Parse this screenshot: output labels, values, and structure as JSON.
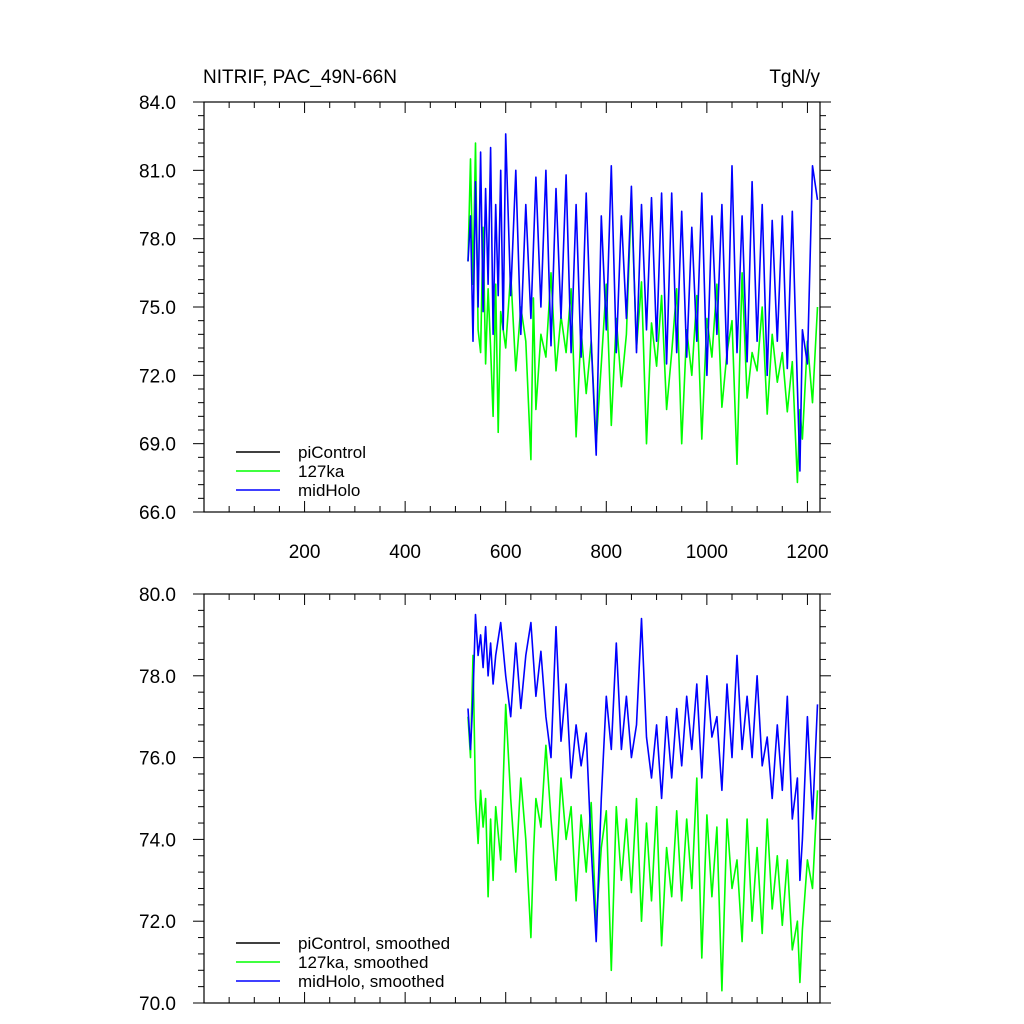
{
  "header": {
    "left_title": "NITRIF, PAC_49N-66N",
    "units": "TgN/y"
  },
  "colors": {
    "piControl": "#000000",
    "127ka": "#00ff00",
    "midHolo": "#0000ff"
  },
  "chart_data": [
    {
      "type": "line",
      "title": "",
      "xlabel": "",
      "ylabel": "",
      "xlim": [
        0,
        1225
      ],
      "ylim": [
        66,
        84
      ],
      "x_ticks": [
        200,
        400,
        600,
        800,
        1000,
        1200
      ],
      "x_tick_labels": [
        "200",
        "400",
        "600",
        "800",
        "1000",
        "1200"
      ],
      "y_ticks": [
        66,
        69,
        72,
        75,
        78,
        81,
        84
      ],
      "y_tick_labels": [
        "66.0",
        "69.0",
        "72.0",
        "75.0",
        "78.0",
        "81.0",
        "84.0"
      ],
      "legend": [
        "piControl",
        "127ka",
        "midHolo"
      ],
      "legend_position": "bottom-left",
      "series": [
        {
          "name": "piControl",
          "color": "#000000",
          "x": [],
          "y": []
        },
        {
          "name": "127ka",
          "color": "#00ff00",
          "x": [
            525,
            530,
            535,
            540,
            545,
            550,
            555,
            560,
            565,
            570,
            575,
            580,
            585,
            590,
            600,
            610,
            620,
            630,
            640,
            650,
            655,
            660,
            670,
            680,
            690,
            700,
            710,
            720,
            730,
            740,
            750,
            760,
            770,
            780,
            790,
            800,
            810,
            820,
            830,
            840,
            850,
            860,
            870,
            880,
            890,
            900,
            910,
            920,
            930,
            940,
            950,
            960,
            970,
            980,
            990,
            1000,
            1010,
            1020,
            1030,
            1040,
            1050,
            1060,
            1070,
            1080,
            1090,
            1100,
            1110,
            1120,
            1130,
            1140,
            1150,
            1160,
            1170,
            1180,
            1185,
            1190,
            1200,
            1210,
            1220
          ],
          "y": [
            77.0,
            81.5,
            76.0,
            82.2,
            74.0,
            73.0,
            78.5,
            72.5,
            75.8,
            73.2,
            70.2,
            76.0,
            69.5,
            74.8,
            73.2,
            76.5,
            72.2,
            75.0,
            73.5,
            68.3,
            75.4,
            70.5,
            73.8,
            72.8,
            76.5,
            72.2,
            74.6,
            73.0,
            75.8,
            69.3,
            74.0,
            71.2,
            73.5,
            69.0,
            72.5,
            76.0,
            69.8,
            74.5,
            71.5,
            73.8,
            79.8,
            73.2,
            76.1,
            69.0,
            74.3,
            72.4,
            75.5,
            70.5,
            73.0,
            75.8,
            69.0,
            74.0,
            72.0,
            75.5,
            69.2,
            74.5,
            72.8,
            76.0,
            70.6,
            73.0,
            74.4,
            68.1,
            76.5,
            71.0,
            73.0,
            72.2,
            75.0,
            70.3,
            73.8,
            71.7,
            73.0,
            70.4,
            72.6,
            67.3,
            70.5,
            69.2,
            73.5,
            70.8,
            75.0
          ]
        },
        {
          "name": "midHolo",
          "color": "#0000ff",
          "x": [
            525,
            530,
            535,
            540,
            545,
            550,
            555,
            560,
            565,
            570,
            575,
            580,
            585,
            590,
            595,
            600,
            610,
            620,
            630,
            640,
            650,
            660,
            670,
            680,
            690,
            700,
            710,
            720,
            730,
            740,
            750,
            760,
            770,
            780,
            790,
            800,
            810,
            820,
            830,
            840,
            850,
            860,
            870,
            880,
            890,
            900,
            910,
            920,
            930,
            940,
            950,
            960,
            970,
            980,
            990,
            1000,
            1010,
            1020,
            1030,
            1040,
            1050,
            1060,
            1070,
            1080,
            1090,
            1100,
            1110,
            1120,
            1130,
            1140,
            1150,
            1160,
            1170,
            1180,
            1185,
            1190,
            1200,
            1210,
            1220
          ],
          "y": [
            77.0,
            79.0,
            73.5,
            80.5,
            75.0,
            81.8,
            74.8,
            80.2,
            76.0,
            82.0,
            73.8,
            79.5,
            75.5,
            81.0,
            74.0,
            82.6,
            75.5,
            81.0,
            73.8,
            79.5,
            74.5,
            80.7,
            75.0,
            81.0,
            73.3,
            80.2,
            74.5,
            80.8,
            73.0,
            79.5,
            72.8,
            80.0,
            73.5,
            68.5,
            79.0,
            74.0,
            81.2,
            73.0,
            79.0,
            74.5,
            80.3,
            73.0,
            79.5,
            74.0,
            79.8,
            73.5,
            80.0,
            72.5,
            80.0,
            73.0,
            79.2,
            72.8,
            78.5,
            73.5,
            80.0,
            72.0,
            79.0,
            73.8,
            79.5,
            72.5,
            81.2,
            73.0,
            79.0,
            72.6,
            80.5,
            73.5,
            79.5,
            72.0,
            78.8,
            73.5,
            79.0,
            72.3,
            79.2,
            71.5,
            67.8,
            74.0,
            72.5,
            81.2,
            79.7
          ]
        }
      ]
    },
    {
      "type": "line",
      "title": "",
      "xlabel": "",
      "ylabel": "",
      "xlim": [
        0,
        1225
      ],
      "ylim": [
        70,
        80
      ],
      "x_ticks": [
        200,
        400,
        600,
        800,
        1000,
        1200
      ],
      "y_ticks": [
        70,
        72,
        74,
        76,
        78,
        80
      ],
      "y_tick_labels": [
        "70.0",
        "72.0",
        "74.0",
        "76.0",
        "78.0",
        "80.0"
      ],
      "legend": [
        "piControl, smoothed",
        "127ka, smoothed",
        "midHolo, smoothed"
      ],
      "legend_position": "bottom-left",
      "series": [
        {
          "name": "piControl, smoothed",
          "color": "#000000",
          "x": [],
          "y": []
        },
        {
          "name": "127ka, smoothed",
          "color": "#00ff00",
          "x": [
            525,
            530,
            535,
            540,
            545,
            550,
            555,
            560,
            565,
            570,
            575,
            580,
            590,
            600,
            610,
            620,
            630,
            640,
            650,
            655,
            660,
            670,
            680,
            690,
            700,
            710,
            720,
            730,
            740,
            750,
            760,
            770,
            780,
            790,
            800,
            810,
            820,
            830,
            840,
            850,
            860,
            870,
            880,
            890,
            900,
            910,
            920,
            930,
            940,
            950,
            960,
            970,
            980,
            990,
            1000,
            1010,
            1020,
            1030,
            1040,
            1050,
            1060,
            1070,
            1080,
            1090,
            1100,
            1110,
            1120,
            1130,
            1140,
            1150,
            1160,
            1170,
            1180,
            1185,
            1190,
            1200,
            1210,
            1220
          ],
          "y": [
            77.0,
            76.0,
            78.5,
            75.0,
            73.9,
            75.2,
            74.3,
            75.0,
            72.6,
            74.5,
            73.0,
            74.8,
            73.5,
            77.3,
            75.0,
            73.2,
            75.5,
            74.0,
            71.6,
            73.6,
            75.0,
            74.3,
            76.3,
            74.5,
            73.0,
            75.5,
            74.0,
            74.8,
            72.5,
            74.6,
            73.2,
            74.9,
            71.9,
            73.8,
            74.7,
            70.8,
            74.8,
            73.0,
            74.5,
            72.7,
            75.0,
            72.0,
            74.4,
            72.5,
            74.8,
            71.4,
            73.8,
            72.6,
            74.7,
            72.5,
            74.5,
            72.8,
            75.5,
            71.1,
            74.6,
            72.6,
            74.3,
            70.3,
            74.5,
            72.8,
            73.5,
            71.5,
            74.5,
            72.0,
            73.8,
            71.7,
            74.5,
            72.3,
            73.6,
            71.9,
            73.5,
            71.3,
            72.0,
            70.5,
            71.8,
            73.5,
            72.8,
            75.2
          ]
        },
        {
          "name": "midHolo, smoothed",
          "color": "#0000ff",
          "x": [
            525,
            530,
            535,
            540,
            545,
            550,
            555,
            560,
            565,
            570,
            575,
            580,
            590,
            600,
            610,
            620,
            630,
            640,
            650,
            660,
            670,
            680,
            690,
            700,
            710,
            720,
            730,
            740,
            750,
            760,
            770,
            780,
            790,
            800,
            810,
            820,
            830,
            840,
            850,
            860,
            870,
            880,
            890,
            900,
            910,
            920,
            930,
            940,
            950,
            960,
            970,
            980,
            990,
            1000,
            1010,
            1020,
            1030,
            1040,
            1050,
            1060,
            1070,
            1080,
            1090,
            1100,
            1110,
            1120,
            1130,
            1140,
            1150,
            1160,
            1170,
            1180,
            1185,
            1190,
            1200,
            1210,
            1220
          ],
          "y": [
            77.2,
            76.2,
            77.5,
            79.5,
            78.5,
            79.0,
            78.2,
            79.2,
            78.0,
            78.8,
            77.8,
            78.5,
            79.3,
            78.0,
            77.0,
            78.8,
            77.2,
            78.5,
            79.3,
            77.5,
            78.6,
            77.0,
            76.0,
            79.2,
            76.4,
            77.8,
            75.5,
            76.8,
            75.8,
            76.6,
            73.8,
            71.5,
            75.0,
            77.5,
            76.2,
            78.8,
            76.2,
            77.5,
            76.0,
            76.8,
            79.4,
            76.5,
            75.5,
            76.8,
            75.0,
            77.0,
            75.5,
            77.2,
            75.8,
            77.5,
            76.2,
            77.8,
            75.5,
            78.0,
            76.5,
            77.0,
            75.2,
            77.8,
            76.0,
            78.5,
            76.2,
            77.5,
            76.0,
            78.0,
            75.8,
            76.5,
            75.0,
            76.8,
            75.2,
            77.5,
            74.5,
            75.5,
            73.0,
            74.0,
            77.0,
            74.5,
            77.3
          ]
        }
      ]
    }
  ]
}
